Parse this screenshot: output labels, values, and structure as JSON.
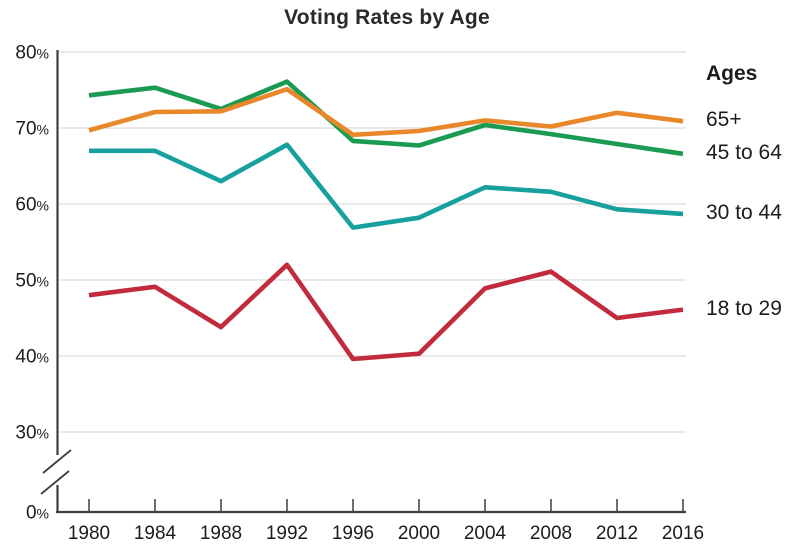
{
  "title": "Voting Rates by Age",
  "legend": {
    "header": "Ages",
    "position": "right"
  },
  "axis": {
    "y_tick_labels": [
      "80%",
      "70%",
      "60%",
      "50%",
      "40%",
      "30%",
      "0%"
    ],
    "y_tick_values": [
      80,
      70,
      60,
      50,
      40,
      30,
      0
    ],
    "x_tick_labels": [
      "1980",
      "1984",
      "1988",
      "1992",
      "1996",
      "2000",
      "2004",
      "2008",
      "2012",
      "2016"
    ]
  },
  "colors": {
    "orange_65plus": "#e8882b",
    "green_45to64": "#1b9b52",
    "teal_30to44": "#17a09e",
    "red_18to29": "#c12b3d",
    "axis": "#3f3f3f",
    "gridline": "#dcdcdc",
    "text": "#1c1c1c"
  },
  "chart_data": {
    "type": "line",
    "title": "Voting Rates by Age",
    "xlabel": "",
    "ylabel": "",
    "x": [
      1980,
      1984,
      1988,
      1992,
      1996,
      2000,
      2004,
      2008,
      2012,
      2016
    ],
    "ylim": [
      0,
      80
    ],
    "y_axis_break_between": [
      0,
      30
    ],
    "grid": "horizontal",
    "legend_position": "right",
    "legend_header": "Ages",
    "series": [
      {
        "name": "65+",
        "color": "#e8882b",
        "values": [
          69.7,
          72.1,
          72.2,
          75.1,
          69.1,
          69.6,
          71.0,
          70.2,
          72.0,
          70.9
        ]
      },
      {
        "name": "45 to 64",
        "color": "#1b9b52",
        "values": [
          74.3,
          75.3,
          72.5,
          76.1,
          68.3,
          67.7,
          70.4,
          69.2,
          67.9,
          66.6
        ]
      },
      {
        "name": "30 to 44",
        "color": "#17a09e",
        "values": [
          67.0,
          67.0,
          63.0,
          67.8,
          56.9,
          58.2,
          62.2,
          61.6,
          59.3,
          58.7
        ]
      },
      {
        "name": "18 to 29",
        "color": "#c12b3d",
        "values": [
          48.0,
          49.1,
          43.8,
          52.0,
          39.6,
          40.3,
          48.9,
          51.1,
          45.0,
          46.1
        ]
      }
    ]
  }
}
